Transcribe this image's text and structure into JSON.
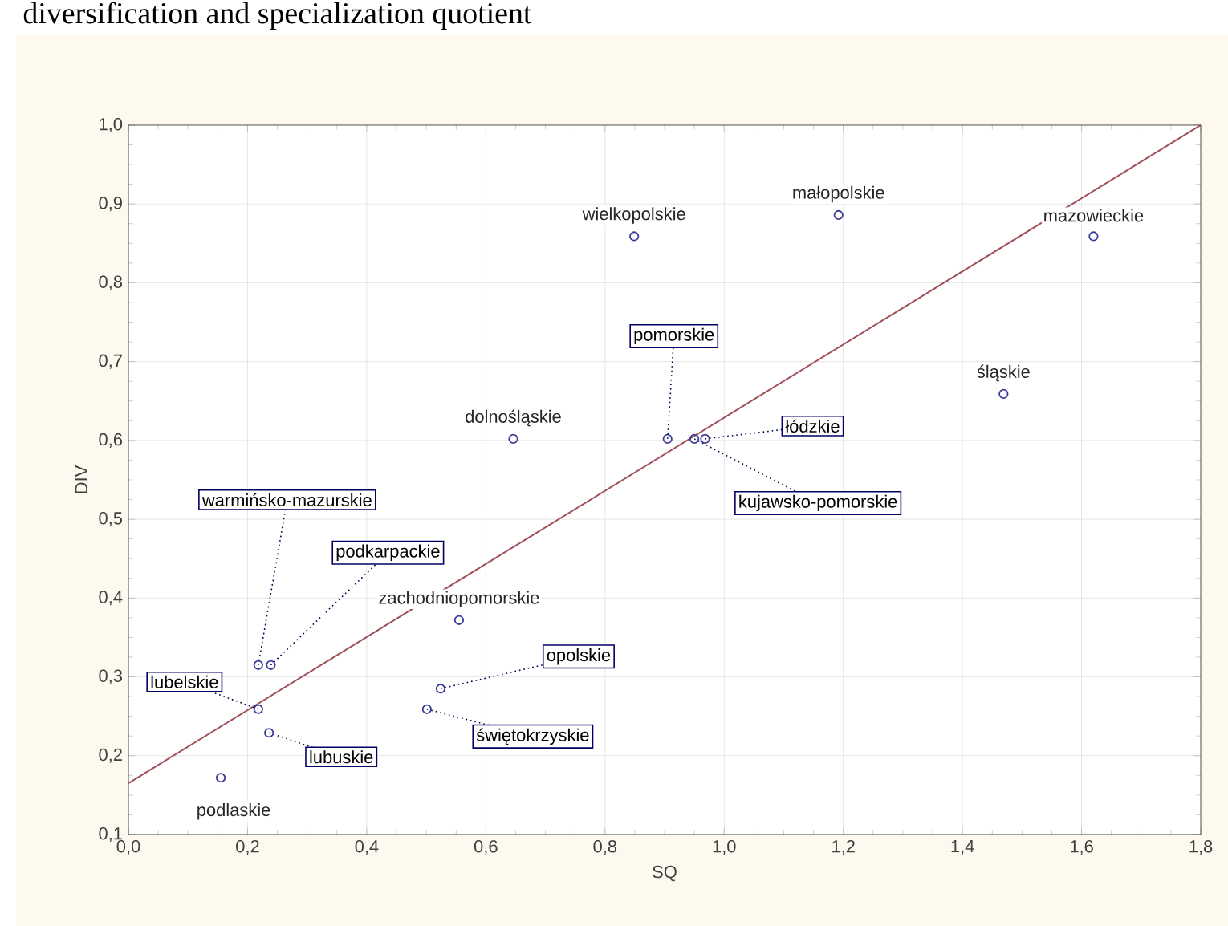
{
  "chart_data": {
    "type": "scatter",
    "title": "diversification and specialization quotient",
    "xlabel": "SQ",
    "ylabel": "DIV",
    "xlim": [
      0,
      1.8
    ],
    "ylim": [
      0.1,
      1.0
    ],
    "xticks": [
      {
        "value": 0,
        "label": "0,0"
      },
      {
        "value": 0.2,
        "label": "0,2"
      },
      {
        "value": 0.4,
        "label": "0,4"
      },
      {
        "value": 0.6,
        "label": "0,6"
      },
      {
        "value": 0.8,
        "label": "0,8"
      },
      {
        "value": 1.0,
        "label": "1,0"
      },
      {
        "value": 1.2,
        "label": "1,2"
      },
      {
        "value": 1.4,
        "label": "1,4"
      },
      {
        "value": 1.6,
        "label": "1,6"
      },
      {
        "value": 1.8,
        "label": "1,8"
      }
    ],
    "yticks": [
      {
        "value": 0.1,
        "label": "0,1"
      },
      {
        "value": 0.2,
        "label": "0,2"
      },
      {
        "value": 0.3,
        "label": "0,3"
      },
      {
        "value": 0.4,
        "label": "0,4"
      },
      {
        "value": 0.5,
        "label": "0,5"
      },
      {
        "value": 0.6,
        "label": "0,6"
      },
      {
        "value": 0.7,
        "label": "0,7"
      },
      {
        "value": 0.8,
        "label": "0,8"
      },
      {
        "value": 0.9,
        "label": "0,9"
      },
      {
        "value": 1.0,
        "label": "1,0"
      }
    ],
    "grid": true,
    "marker": "circle",
    "series": [
      {
        "type": "scatter",
        "color": "#3a3a9a",
        "x": [
          0.849,
          1.192,
          1.62,
          1.469,
          0.646,
          0.905,
          0.95,
          0.968,
          0.555,
          0.218,
          0.239,
          0.218,
          0.236,
          0.524,
          0.501,
          0.155
        ],
        "values": [
          0.859,
          0.886,
          0.859,
          0.659,
          0.602,
          0.602,
          0.602,
          0.602,
          0.372,
          0.315,
          0.315,
          0.259,
          0.229,
          0.285,
          0.259,
          0.172
        ]
      },
      {
        "type": "line",
        "marker": "none",
        "color": "#a05058",
        "x": [
          0,
          1.8
        ],
        "values": [
          0.165,
          1.0
        ]
      }
    ],
    "annotations": [
      {
        "text": "wielkopolskie",
        "x": 0.849,
        "y": 0.859
      },
      {
        "text": "małopolskie",
        "x": 1.192,
        "y": 0.886
      },
      {
        "text": "mazowieckie",
        "x": 1.62,
        "y": 0.859
      },
      {
        "text": "śląskie",
        "x": 1.469,
        "y": 0.659
      },
      {
        "text": "dolnośląskie",
        "x": 0.646,
        "y": 0.602
      },
      {
        "text": "pomorskie",
        "x": 0.905,
        "y": 0.602
      },
      {
        "text": "kujawsko-pomorskie",
        "x": 0.95,
        "y": 0.602
      },
      {
        "text": "łódzkie",
        "x": 0.968,
        "y": 0.602
      },
      {
        "text": "zachodniopomorskie",
        "x": 0.555,
        "y": 0.372
      },
      {
        "text": "warmińsko-mazurskie",
        "x": 0.218,
        "y": 0.315
      },
      {
        "text": "podkarpackie",
        "x": 0.239,
        "y": 0.315
      },
      {
        "text": "lubelskie",
        "x": 0.218,
        "y": 0.259
      },
      {
        "text": "lubuskie",
        "x": 0.236,
        "y": 0.229
      },
      {
        "text": "opolskie",
        "x": 0.524,
        "y": 0.285
      },
      {
        "text": "świętokrzyskie",
        "x": 0.501,
        "y": 0.259
      },
      {
        "text": "podlaskie",
        "x": 0.155,
        "y": 0.172
      }
    ]
  }
}
